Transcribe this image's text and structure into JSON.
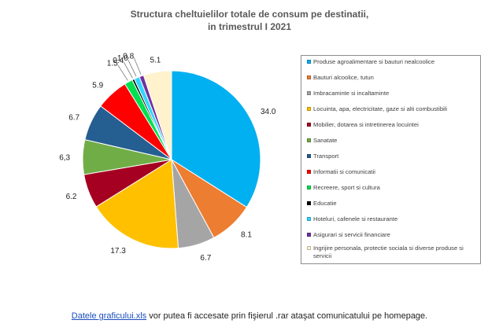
{
  "chart_data": {
    "type": "pie",
    "title": "Structura cheltuielilor totale de consum pe destinatii,",
    "subtitle": "in trimestrul I 2021",
    "legend_position": "right",
    "slices": [
      {
        "name": "Produse agroalimentare si bauturi nealcoolice",
        "value": 34.0,
        "label": "34.0",
        "color": "#00b0f0"
      },
      {
        "name": "Bauturi alcoolice, tutun",
        "value": 8.1,
        "label": "8.1",
        "color": "#ed7d31"
      },
      {
        "name": "Imbracaminte si incaltaminte",
        "value": 6.7,
        "label": "6.7",
        "color": "#a5a5a5"
      },
      {
        "name": "Locuinta, apa, electricitate, gaze si alti combustibili",
        "value": 17.3,
        "label": "17.3",
        "color": "#ffc000"
      },
      {
        "name": "Mobilier, dotarea si intretinerea locuintei",
        "value": 6.2,
        "label": "6.2",
        "color": "#a50021"
      },
      {
        "name": "Sanatate",
        "value": 6.3,
        "label": "6,3",
        "color": "#70ad47"
      },
      {
        "name": "Transport",
        "value": 6.7,
        "label": "6.7",
        "color": "#255e91"
      },
      {
        "name": "Informatii si comunicatii",
        "value": 5.9,
        "label": "5.9",
        "color": "#ff0000"
      },
      {
        "name": "Recreere, sport si cultura",
        "value": 1.5,
        "label": "1.5",
        "color": "#00e050"
      },
      {
        "name": "Educatie",
        "value": 0.4,
        "label": "0.4",
        "color": "#000000"
      },
      {
        "name": "Hoteluri, cafenele si restaurante",
        "value": 1.0,
        "label": "1.0",
        "color": "#33d6ff"
      },
      {
        "name": "Asigurari si servicii financiare",
        "value": 0.8,
        "label": "0.8",
        "color": "#7030a0"
      },
      {
        "name": "Ingrijire personala, protectie sociala si diverse produse si servicii",
        "value": 5.1,
        "label": "5.1",
        "color": "#fff2cc"
      }
    ]
  },
  "footer": {
    "link_text": "Datele graficului.xls",
    "rest_text": " vor putea fi accesate prin fişierul .rar  ataşat comunicatului pe homepage."
  }
}
